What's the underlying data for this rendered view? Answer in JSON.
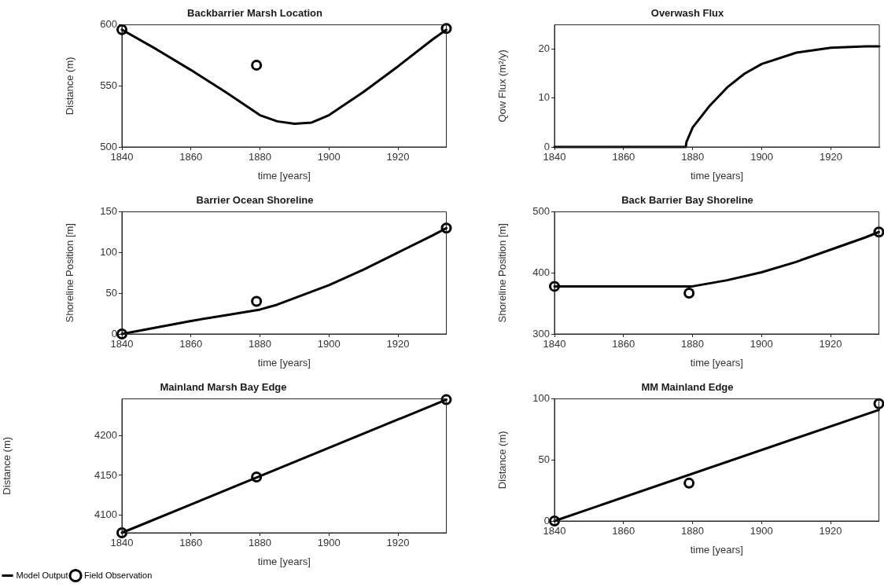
{
  "chart_data": [
    {
      "type": "line",
      "title": "Backbarrier Marsh Location",
      "xlabel": "time [years]",
      "ylabel": "Distance (m)",
      "xlim": [
        1840,
        1934
      ],
      "xticks": [
        1840,
        1860,
        1880,
        1900,
        1920
      ],
      "ylim": [
        500,
        600
      ],
      "yticks": [
        500,
        550,
        600
      ],
      "grid": false,
      "legend": false,
      "series": [
        {
          "type": "line",
          "color": "#000000",
          "marker": "none",
          "line_style": "solid",
          "x": [
            1840,
            1850,
            1860,
            1870,
            1880,
            1885,
            1890,
            1895,
            1900,
            1910,
            1920,
            1930,
            1934
          ],
          "values": [
            596,
            580,
            563,
            545,
            526,
            521,
            519,
            520,
            526,
            545,
            566,
            588,
            596
          ]
        },
        {
          "type": "scatter",
          "color": "#000000",
          "marker": "circle",
          "x": [
            1840,
            1879,
            1934
          ],
          "values": [
            596,
            567,
            597
          ]
        }
      ]
    },
    {
      "type": "line",
      "title": "Overwash Flux",
      "xlabel": "time [years]",
      "ylabel": "Qow Flux (m²/y)",
      "xlim": [
        1840,
        1934
      ],
      "xticks": [
        1840,
        1860,
        1880,
        1900,
        1920
      ],
      "ylim": [
        0,
        25
      ],
      "yticks": [
        0,
        10,
        20
      ],
      "grid": false,
      "legend": false,
      "series": [
        {
          "type": "line",
          "color": "#000000",
          "marker": "none",
          "line_style": "solid",
          "x": [
            1840,
            1878,
            1878.2,
            1880,
            1885,
            1890,
            1895,
            1900,
            1910,
            1920,
            1930,
            1934
          ],
          "values": [
            0,
            0,
            1,
            4,
            8.5,
            12.2,
            15,
            17,
            19.3,
            20.3,
            20.6,
            20.6
          ]
        }
      ]
    },
    {
      "type": "line",
      "title": "Barrier Ocean Shoreline",
      "xlabel": "time [years]",
      "ylabel": "Shoreline Position [m]",
      "xlim": [
        1840,
        1934
      ],
      "xticks": [
        1840,
        1860,
        1880,
        1900,
        1920
      ],
      "ylim": [
        0,
        150
      ],
      "yticks": [
        0,
        50,
        100,
        150
      ],
      "grid": false,
      "legend": false,
      "series": [
        {
          "type": "line",
          "color": "#000000",
          "marker": "none",
          "line_style": "solid",
          "x": [
            1840,
            1850,
            1860,
            1870,
            1880,
            1885,
            1890,
            1900,
            1910,
            1920,
            1930,
            1934
          ],
          "values": [
            0,
            8,
            16,
            23,
            30,
            36,
            44,
            60,
            79,
            100,
            121,
            130
          ]
        },
        {
          "type": "scatter",
          "color": "#000000",
          "marker": "circle",
          "x": [
            1840,
            1879,
            1934
          ],
          "values": [
            0,
            40,
            130
          ]
        }
      ]
    },
    {
      "type": "line",
      "title": "Back Barrier Bay Shoreline",
      "xlabel": "time [years]",
      "ylabel": "Shoreline Position [m]",
      "xlim": [
        1840,
        1934
      ],
      "xticks": [
        1840,
        1860,
        1880,
        1900,
        1920
      ],
      "ylim": [
        300,
        500
      ],
      "yticks": [
        300,
        400,
        500
      ],
      "grid": false,
      "legend": false,
      "series": [
        {
          "type": "line",
          "color": "#000000",
          "marker": "none",
          "line_style": "solid",
          "x": [
            1840,
            1880,
            1890,
            1900,
            1910,
            1920,
            1930,
            1934
          ],
          "values": [
            378,
            378,
            388,
            401,
            418,
            438,
            458,
            467
          ]
        },
        {
          "type": "scatter",
          "color": "#000000",
          "marker": "circle",
          "x": [
            1840,
            1879,
            1934
          ],
          "values": [
            378,
            367,
            467
          ]
        }
      ]
    },
    {
      "type": "line",
      "title": "Mainland Marsh Bay Edge",
      "xlabel": "time [years]",
      "ylabel": "Distance (m)",
      "xlim": [
        1840,
        1934
      ],
      "xticks": [
        1840,
        1860,
        1880,
        1900,
        1920
      ],
      "ylim": [
        4078,
        4246
      ],
      "yticks": [
        4100,
        4150,
        4200
      ],
      "grid": false,
      "legend": "bottom left",
      "series": [
        {
          "name": "Model Output",
          "type": "line",
          "color": "#000000",
          "marker": "none",
          "line_style": "solid",
          "x": [
            1840,
            1934
          ],
          "values": [
            4078,
            4245
          ]
        },
        {
          "name": "Field Observation",
          "type": "scatter",
          "color": "#000000",
          "marker": "circle",
          "x": [
            1840,
            1879,
            1934
          ],
          "values": [
            4078,
            4148,
            4245
          ]
        }
      ]
    },
    {
      "type": "line",
      "title": "MM Mainland Edge",
      "xlabel": "time [years]",
      "ylabel": "Distance (m)",
      "xlim": [
        1840,
        1934
      ],
      "xticks": [
        1840,
        1860,
        1880,
        1900,
        1920
      ],
      "ylim": [
        0,
        100
      ],
      "yticks": [
        0,
        50,
        100
      ],
      "grid": false,
      "legend": false,
      "series": [
        {
          "type": "line",
          "color": "#000000",
          "marker": "none",
          "line_style": "solid",
          "x": [
            1840,
            1934
          ],
          "values": [
            0,
            91
          ]
        },
        {
          "type": "scatter",
          "color": "#000000",
          "marker": "circle",
          "x": [
            1840,
            1879,
            1934
          ],
          "values": [
            0,
            31,
            96
          ]
        }
      ]
    }
  ]
}
